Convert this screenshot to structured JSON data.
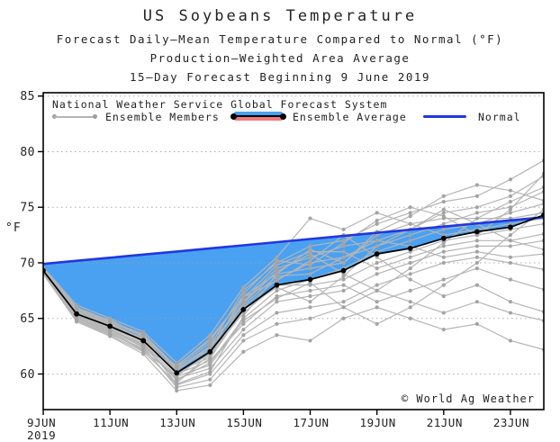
{
  "title": "US Soybeans Temperature",
  "subtitle1": "Forecast Daily–Mean Temperature Compared to Normal (°F)",
  "subtitle2": "Production–Weighted Area Average",
  "subtitle3": "15–Day Forecast Beginning 9 June 2019",
  "watermark": "© World Ag Weather",
  "legend": {
    "header": "National Weather Service Global Forecast System",
    "members_label": "Ensemble Members",
    "average_label": "Ensemble Average",
    "normal_label": "Normal"
  },
  "colors": {
    "fill_below_normal": "#4aa1f1",
    "fill_above_normal": "#f4787d",
    "normal_line": "#2236e0",
    "average_line": "#000000",
    "average_dot": "#000000",
    "member_line": "#b5b5b5",
    "member_dot": "#a4a4a4",
    "grid": "#9e9e9e",
    "axis": "#000000",
    "text": "#232323"
  },
  "chart_data": {
    "type": "line",
    "title": "US Soybeans Temperature",
    "ylabel": "°F",
    "year_label": "2019",
    "x_dates": [
      "9JUN",
      "10JUN",
      "11JUN",
      "12JUN",
      "13JUN",
      "14JUN",
      "15JUN",
      "16JUN",
      "17JUN",
      "18JUN",
      "19JUN",
      "20JUN",
      "21JUN",
      "22JUN",
      "23JUN",
      "24JUN"
    ],
    "x_tick_days": [
      0,
      2,
      4,
      6,
      8,
      10,
      12,
      14
    ],
    "x_tick_labels": [
      "9JUN",
      "11JUN",
      "13JUN",
      "15JUN",
      "17JUN",
      "19JUN",
      "21JUN",
      "23JUN"
    ],
    "y_ticks": [
      60,
      65,
      70,
      75,
      80,
      85
    ],
    "ylim": [
      56.8,
      85.3
    ],
    "grid": "dotted-horizontal",
    "legend_position": "top-left-inside",
    "series": [
      {
        "name": "Ensemble Average",
        "values": [
          69.3,
          65.4,
          64.3,
          63.0,
          60.1,
          62.0,
          65.8,
          68.0,
          68.5,
          69.3,
          70.8,
          71.3,
          72.2,
          72.8,
          73.2,
          74.3
        ]
      },
      {
        "name": "Normal",
        "values": [
          69.9,
          70.18,
          70.46,
          70.74,
          71.02,
          71.3,
          71.58,
          71.86,
          72.14,
          72.42,
          72.7,
          72.98,
          73.26,
          73.54,
          73.82,
          74.1
        ]
      }
    ],
    "ensemble_members": [
      [
        69.5,
        66.0,
        64.8,
        63.5,
        60.5,
        62.5,
        67.5,
        70.0,
        71.5,
        72.0,
        73.5,
        74.5,
        75.5,
        76.0,
        77.5,
        79.2
      ],
      [
        69.3,
        65.8,
        64.5,
        63.2,
        60.2,
        61.5,
        66.5,
        69.5,
        70.5,
        71.5,
        72.0,
        73.0,
        74.5,
        75.0,
        76.0,
        77.8
      ],
      [
        69.2,
        65.5,
        64.2,
        62.8,
        59.8,
        62.0,
        66.0,
        68.5,
        70.0,
        70.5,
        71.5,
        72.5,
        73.5,
        74.5,
        75.0,
        76.4
      ],
      [
        69.4,
        65.2,
        64.0,
        62.5,
        59.5,
        61.0,
        65.0,
        67.5,
        68.5,
        69.5,
        71.0,
        72.0,
        73.0,
        73.5,
        74.5,
        75.3
      ],
      [
        69.1,
        65.0,
        63.8,
        62.2,
        60.8,
        63.0,
        67.0,
        69.0,
        69.5,
        70.0,
        72.5,
        73.5,
        74.0,
        74.0,
        74.0,
        74.5
      ],
      [
        69.6,
        66.2,
        65.0,
        63.8,
        61.0,
        63.5,
        67.8,
        70.5,
        74.0,
        73.0,
        74.5,
        73.5,
        72.5,
        73.0,
        73.5,
        74.0
      ],
      [
        69.0,
        64.8,
        63.5,
        62.0,
        59.2,
        61.8,
        65.5,
        68.0,
        68.0,
        68.5,
        70.0,
        71.0,
        72.0,
        72.5,
        73.0,
        73.5
      ],
      [
        69.3,
        65.6,
        64.6,
        63.4,
        60.4,
        62.2,
        66.8,
        69.8,
        71.0,
        71.0,
        69.5,
        70.5,
        71.5,
        72.0,
        72.0,
        72.6
      ],
      [
        69.2,
        65.3,
        64.1,
        62.6,
        59.6,
        60.5,
        64.0,
        66.5,
        67.0,
        67.5,
        69.0,
        70.0,
        71.0,
        71.5,
        71.5,
        72.0
      ],
      [
        69.5,
        65.9,
        64.7,
        63.6,
        60.6,
        62.8,
        66.2,
        68.8,
        69.0,
        70.5,
        72.0,
        71.5,
        70.5,
        71.0,
        70.5,
        70.8
      ],
      [
        69.1,
        64.9,
        63.6,
        62.3,
        59.0,
        60.0,
        63.5,
        65.5,
        66.0,
        66.5,
        68.0,
        69.0,
        70.0,
        70.5,
        70.0,
        69.4
      ],
      [
        69.4,
        65.7,
        64.4,
        63.1,
        60.0,
        61.2,
        64.5,
        67.0,
        67.5,
        68.0,
        66.5,
        67.5,
        68.5,
        69.5,
        68.5,
        67.6
      ],
      [
        69.2,
        65.1,
        63.9,
        62.4,
        58.8,
        59.5,
        63.0,
        64.5,
        65.0,
        66.0,
        67.5,
        66.5,
        65.5,
        66.5,
        65.5,
        64.8
      ],
      [
        69.0,
        64.7,
        63.4,
        61.8,
        58.5,
        59.0,
        62.0,
        63.5,
        63.0,
        65.0,
        66.0,
        65.0,
        64.0,
        64.5,
        63.0,
        62.2
      ],
      [
        69.4,
        65.4,
        64.3,
        63.0,
        60.3,
        62.4,
        66.4,
        69.2,
        70.8,
        69.0,
        67.5,
        69.5,
        71.8,
        74.0,
        75.5,
        76.8
      ],
      [
        69.2,
        65.2,
        64.0,
        62.7,
        59.4,
        61.4,
        65.8,
        67.8,
        66.5,
        68.8,
        71.5,
        73.0,
        74.8,
        73.5,
        72.0,
        71.2
      ],
      [
        69.5,
        65.7,
        64.9,
        63.3,
        60.0,
        61.8,
        67.2,
        70.2,
        69.8,
        71.8,
        73.8,
        75.0,
        74.2,
        72.5,
        74.8,
        78.0
      ],
      [
        69.1,
        65.0,
        63.7,
        62.1,
        59.8,
        60.8,
        64.8,
        66.8,
        68.2,
        66.0,
        64.5,
        66.0,
        68.0,
        70.0,
        72.5,
        74.8
      ],
      [
        69.3,
        65.5,
        64.4,
        63.2,
        60.7,
        63.2,
        66.9,
        68.4,
        70.2,
        72.5,
        70.5,
        68.5,
        67.0,
        68.0,
        66.5,
        65.6
      ],
      [
        69.4,
        65.8,
        64.6,
        62.9,
        59.1,
        60.2,
        65.2,
        69.0,
        71.2,
        70.0,
        72.8,
        74.2,
        76.0,
        77.0,
        76.5,
        75.6
      ]
    ]
  }
}
